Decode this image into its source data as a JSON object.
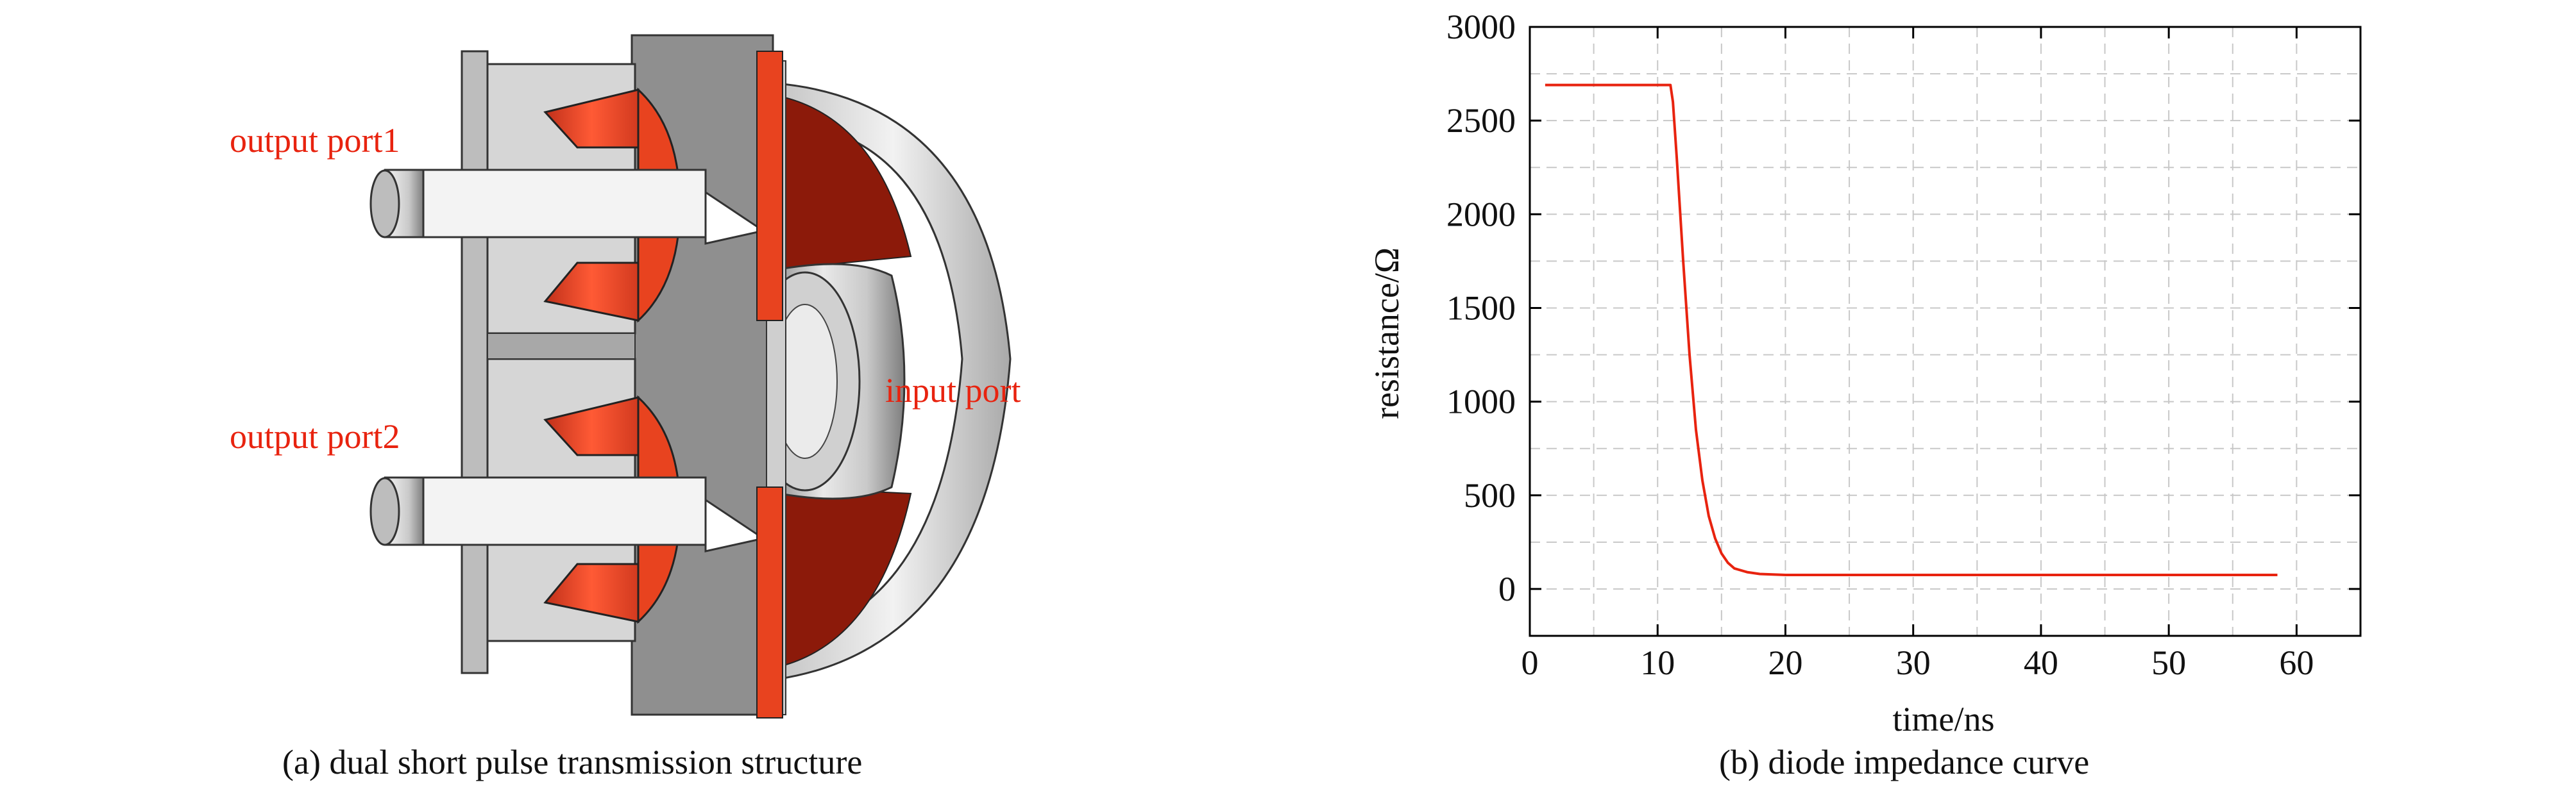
{
  "left_panel": {
    "caption": "(a) dual short pulse transmission structure",
    "labels": {
      "output_port1": "output port1",
      "output_port2": "output port2",
      "input_port": "input port"
    },
    "colors": {
      "label": "#e8230f",
      "copper": "#e8431f",
      "dark_copper": "#8c1a0a",
      "metal": "#d8d8d8"
    }
  },
  "chart_data": {
    "type": "line",
    "caption": "(b) diode impedance curve",
    "xlabel": "time/ns",
    "ylabel": "resistance/Ω",
    "xlim": [
      0,
      65
    ],
    "ylim": [
      -250,
      3000
    ],
    "xticks": [
      0,
      10,
      20,
      30,
      40,
      50,
      60
    ],
    "yticks": [
      0,
      500,
      1000,
      1500,
      2000,
      2500,
      3000
    ],
    "grid": true,
    "series": [
      {
        "color": "#e8230f",
        "x": [
          1.2,
          11.0,
          11.2,
          11.5,
          12.0,
          12.5,
          13.0,
          13.5,
          14.0,
          14.5,
          15.0,
          15.5,
          16.0,
          17.0,
          18.0,
          20.0,
          30.0,
          40.0,
          50.0,
          58.5
        ],
        "y": [
          2690,
          2690,
          2600,
          2300,
          1750,
          1250,
          850,
          580,
          390,
          270,
          190,
          140,
          110,
          90,
          80,
          75,
          75,
          75,
          75,
          75
        ]
      }
    ]
  }
}
